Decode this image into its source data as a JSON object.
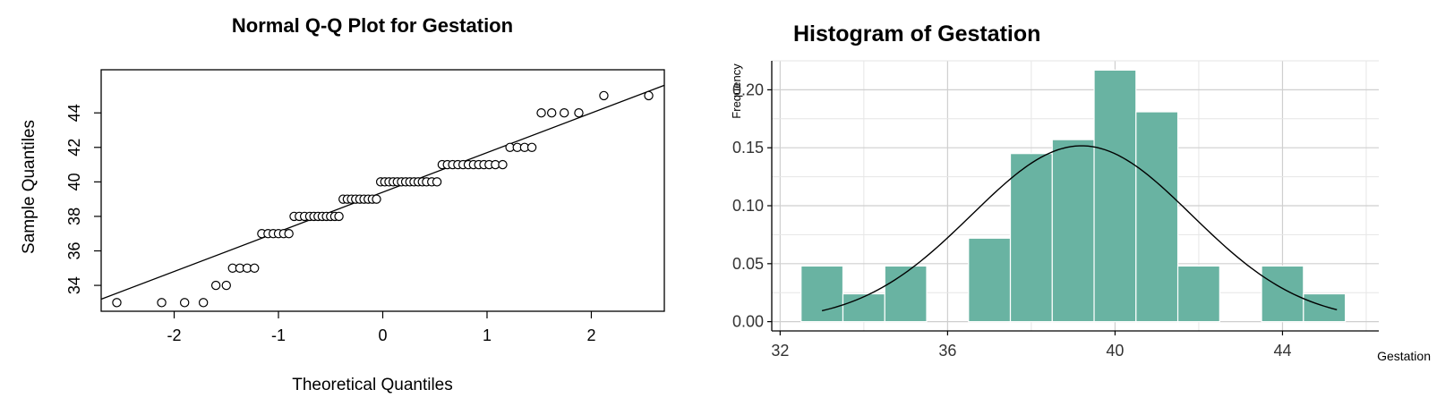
{
  "chart_data": [
    {
      "type": "scatter",
      "title": "Normal Q-Q Plot for Gestation",
      "xlabel": "Theoretical Quantiles",
      "ylabel": "Sample Quantiles",
      "xlim": [
        -2.7,
        2.7
      ],
      "ylim": [
        32.5,
        46.5
      ],
      "xticks": [
        -2,
        -1,
        0,
        1,
        2
      ],
      "yticks": [
        34,
        36,
        38,
        40,
        42,
        44
      ],
      "reference_line": {
        "x": [
          -2.7,
          2.7
        ],
        "y": [
          33.2,
          45.6
        ]
      },
      "points": [
        [
          -2.55,
          33
        ],
        [
          -2.12,
          33
        ],
        [
          -1.9,
          33
        ],
        [
          -1.72,
          33
        ],
        [
          -1.6,
          34
        ],
        [
          -1.5,
          34
        ],
        [
          -1.44,
          35
        ],
        [
          -1.37,
          35
        ],
        [
          -1.3,
          35
        ],
        [
          -1.23,
          35
        ],
        [
          -1.16,
          37
        ],
        [
          -1.1,
          37
        ],
        [
          -1.05,
          37
        ],
        [
          -1.0,
          37
        ],
        [
          -0.95,
          37
        ],
        [
          -0.9,
          37
        ],
        [
          -0.85,
          38
        ],
        [
          -0.8,
          38
        ],
        [
          -0.75,
          38
        ],
        [
          -0.7,
          38
        ],
        [
          -0.66,
          38
        ],
        [
          -0.62,
          38
        ],
        [
          -0.58,
          38
        ],
        [
          -0.54,
          38
        ],
        [
          -0.5,
          38
        ],
        [
          -0.46,
          38
        ],
        [
          -0.42,
          38
        ],
        [
          -0.38,
          39
        ],
        [
          -0.34,
          39
        ],
        [
          -0.3,
          39
        ],
        [
          -0.26,
          39
        ],
        [
          -0.22,
          39
        ],
        [
          -0.18,
          39
        ],
        [
          -0.14,
          39
        ],
        [
          -0.1,
          39
        ],
        [
          -0.06,
          39
        ],
        [
          -0.02,
          40
        ],
        [
          0.02,
          40
        ],
        [
          0.06,
          40
        ],
        [
          0.1,
          40
        ],
        [
          0.14,
          40
        ],
        [
          0.18,
          40
        ],
        [
          0.22,
          40
        ],
        [
          0.26,
          40
        ],
        [
          0.3,
          40
        ],
        [
          0.34,
          40
        ],
        [
          0.38,
          40
        ],
        [
          0.42,
          40
        ],
        [
          0.47,
          40
        ],
        [
          0.52,
          40
        ],
        [
          0.57,
          41
        ],
        [
          0.62,
          41
        ],
        [
          0.67,
          41
        ],
        [
          0.72,
          41
        ],
        [
          0.77,
          41
        ],
        [
          0.82,
          41
        ],
        [
          0.87,
          41
        ],
        [
          0.92,
          41
        ],
        [
          0.97,
          41
        ],
        [
          1.02,
          41
        ],
        [
          1.08,
          41
        ],
        [
          1.15,
          41
        ],
        [
          1.22,
          42
        ],
        [
          1.29,
          42
        ],
        [
          1.36,
          42
        ],
        [
          1.43,
          42
        ],
        [
          1.52,
          44
        ],
        [
          1.62,
          44
        ],
        [
          1.74,
          44
        ],
        [
          1.88,
          44
        ],
        [
          2.12,
          45
        ],
        [
          2.55,
          45
        ]
      ]
    },
    {
      "type": "bar",
      "title": "Histogram of Gestation",
      "xlabel": "Gestation",
      "ylabel": "Frequency",
      "xlim": [
        31.8,
        46.3
      ],
      "ylim": [
        -0.008,
        0.225
      ],
      "xticks": [
        "32",
        "36",
        "40",
        "44"
      ],
      "yticks": [
        "0.00",
        "0.05",
        "0.10",
        "0.15",
        "0.20"
      ],
      "bin_width": 1,
      "bin_starts": [
        32.5,
        33.5,
        34.5,
        36.5,
        37.5,
        38.5,
        39.5,
        40.5,
        41.5,
        43.5,
        44.5
      ],
      "values": [
        0.048,
        0.024,
        0.048,
        0.072,
        0.145,
        0.157,
        0.217,
        0.181,
        0.048,
        0.048,
        0.024
      ],
      "bar_color": "#69b3a2",
      "density_curve": {
        "type": "normal",
        "mean": 39.2,
        "sd": 2.63,
        "x_range": [
          33.0,
          45.3
        ]
      },
      "grid": true
    }
  ]
}
